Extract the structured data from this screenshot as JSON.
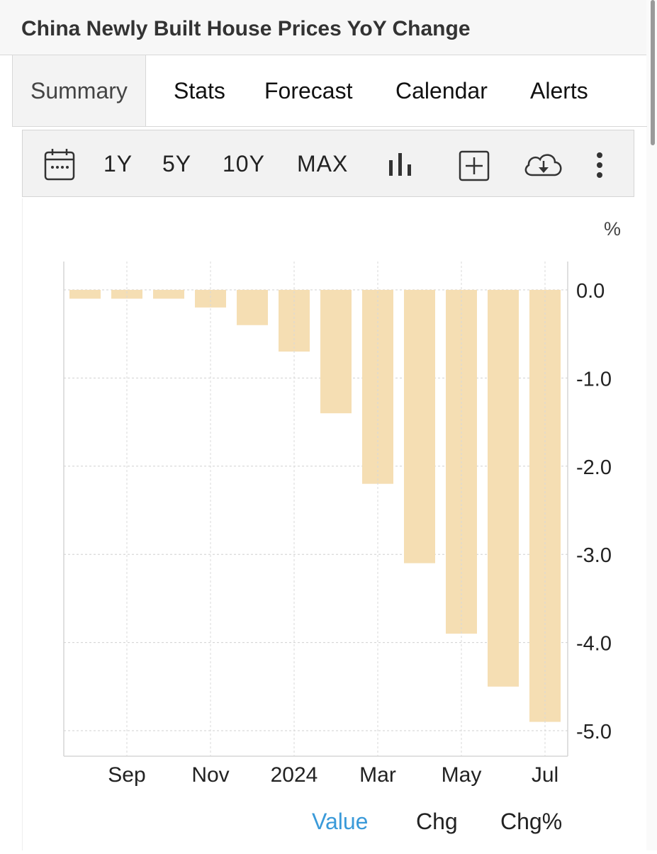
{
  "title": "China Newly Built House Prices YoY Change",
  "tabs": [
    "Summary",
    "Stats",
    "Forecast",
    "Calendar",
    "Alerts"
  ],
  "toolbar": {
    "ranges": [
      "1Y",
      "5Y",
      "10Y",
      "MAX"
    ],
    "icons": [
      "calendar-icon",
      "bar-chart-icon",
      "compare-add-icon",
      "cloud-download-icon",
      "more-vertical-icon"
    ]
  },
  "legend": [
    "Value",
    "Chg",
    "Chg%"
  ],
  "colors": {
    "bar": "#f5deb3",
    "accent": "#3a9ad9"
  },
  "chart_data": {
    "type": "bar",
    "unit": "%",
    "categories": [
      "2023-08",
      "2023-09",
      "2023-10",
      "2023-11",
      "2023-12",
      "2024-01",
      "2024-02",
      "2024-03",
      "2024-04",
      "2024-05",
      "2024-06",
      "2024-07"
    ],
    "values": [
      -0.1,
      -0.1,
      -0.1,
      -0.2,
      -0.4,
      -0.7,
      -1.4,
      -2.2,
      -3.1,
      -3.9,
      -4.5,
      -4.9
    ],
    "x_tick_labels": [
      "Sep",
      "Nov",
      "2024",
      "Mar",
      "May",
      "Jul"
    ],
    "y_tick_labels": [
      "0.0",
      "-1.0",
      "-2.0",
      "-3.0",
      "-4.0",
      "-5.0"
    ],
    "ylim": [
      -5.3,
      0.3
    ],
    "y_axis_position": "right",
    "grid": true
  }
}
